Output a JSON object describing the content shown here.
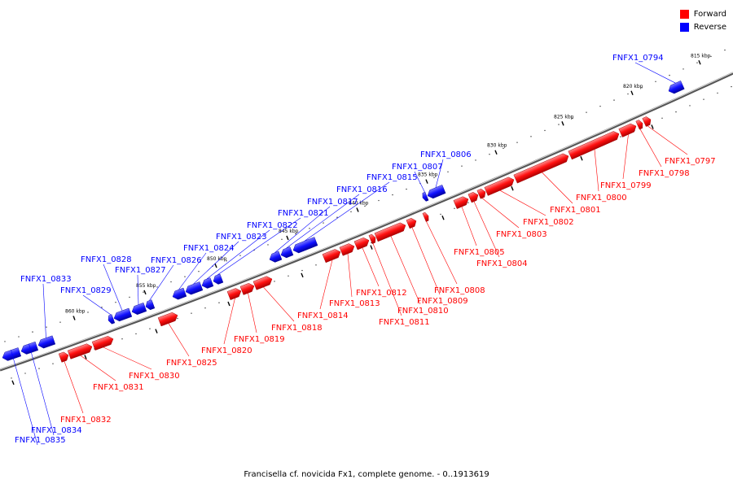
{
  "legend": {
    "forward_label": "Forward",
    "reverse_label": "Reverse",
    "forward_color": "#ff0000",
    "reverse_color": "#0000ff"
  },
  "caption": "Francisella cf. novicida Fx1, complete genome. - 0..1913619",
  "ticks": [
    "815 kbp",
    "820 kbp",
    "825 kbp",
    "830 kbp",
    "835 kbp",
    "840 kbp",
    "845 kbp",
    "850 kbp",
    "855 kbp",
    "860 kbp"
  ],
  "genes": [
    {
      "name": "FNFX1_0794",
      "strand": "reverse"
    },
    {
      "name": "FNFX1_0797",
      "strand": "forward"
    },
    {
      "name": "FNFX1_0798",
      "strand": "forward"
    },
    {
      "name": "FNFX1_0799",
      "strand": "forward"
    },
    {
      "name": "FNFX1_0800",
      "strand": "forward"
    },
    {
      "name": "FNFX1_0801",
      "strand": "forward"
    },
    {
      "name": "FNFX1_0802",
      "strand": "forward"
    },
    {
      "name": "FNFX1_0803",
      "strand": "forward"
    },
    {
      "name": "FNFX1_0804",
      "strand": "forward"
    },
    {
      "name": "FNFX1_0805",
      "strand": "forward"
    },
    {
      "name": "FNFX1_0806",
      "strand": "reverse"
    },
    {
      "name": "FNFX1_0807",
      "strand": "reverse"
    },
    {
      "name": "FNFX1_0808",
      "strand": "forward"
    },
    {
      "name": "FNFX1_0809",
      "strand": "forward"
    },
    {
      "name": "FNFX1_0810",
      "strand": "forward"
    },
    {
      "name": "FNFX1_0811",
      "strand": "forward"
    },
    {
      "name": "FNFX1_0812",
      "strand": "forward"
    },
    {
      "name": "FNFX1_0813",
      "strand": "forward"
    },
    {
      "name": "FNFX1_0814",
      "strand": "forward"
    },
    {
      "name": "FNFX1_0815",
      "strand": "reverse"
    },
    {
      "name": "FNFX1_0816",
      "strand": "reverse"
    },
    {
      "name": "FNFX1_0817",
      "strand": "reverse"
    },
    {
      "name": "FNFX1_0818",
      "strand": "forward"
    },
    {
      "name": "FNFX1_0819",
      "strand": "forward"
    },
    {
      "name": "FNFX1_0820",
      "strand": "forward"
    },
    {
      "name": "FNFX1_0821",
      "strand": "reverse"
    },
    {
      "name": "FNFX1_0822",
      "strand": "reverse"
    },
    {
      "name": "FNFX1_0823",
      "strand": "reverse"
    },
    {
      "name": "FNFX1_0824",
      "strand": "reverse"
    },
    {
      "name": "FNFX1_0825",
      "strand": "forward"
    },
    {
      "name": "FNFX1_0826",
      "strand": "reverse"
    },
    {
      "name": "FNFX1_0827",
      "strand": "reverse"
    },
    {
      "name": "FNFX1_0828",
      "strand": "reverse"
    },
    {
      "name": "FNFX1_0829",
      "strand": "reverse"
    },
    {
      "name": "FNFX1_0830",
      "strand": "forward"
    },
    {
      "name": "FNFX1_0831",
      "strand": "forward"
    },
    {
      "name": "FNFX1_0832",
      "strand": "forward"
    },
    {
      "name": "FNFX1_0833",
      "strand": "reverse"
    },
    {
      "name": "FNFX1_0834",
      "strand": "reverse"
    },
    {
      "name": "FNFX1_0835",
      "strand": "reverse"
    }
  ]
}
